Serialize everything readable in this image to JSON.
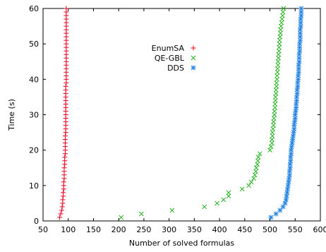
{
  "chart_data": {
    "type": "scatter",
    "xlabel": "Number of solved formulas",
    "ylabel": "Time (s)",
    "xlim": [
      50,
      600
    ],
    "ylim": [
      0,
      60
    ],
    "xticks": [
      "50",
      "100",
      "150",
      "200",
      "250",
      "300",
      "350",
      "400",
      "450",
      "500",
      "550",
      "600"
    ],
    "yticks": [
      "0",
      "10",
      "20",
      "30",
      "40",
      "50",
      "60"
    ],
    "legend_position": "top-center",
    "grid": false,
    "series": [
      {
        "name": "EnumSA",
        "marker": "plus",
        "color": "#e8001c",
        "points": [
          [
            83,
            1
          ],
          [
            85,
            2
          ],
          [
            87,
            3
          ],
          [
            88,
            4
          ],
          [
            89,
            5
          ],
          [
            89,
            6
          ],
          [
            90,
            7
          ],
          [
            90,
            8
          ],
          [
            91,
            9
          ],
          [
            91,
            10
          ],
          [
            91,
            11
          ],
          [
            92,
            12
          ],
          [
            92,
            13
          ],
          [
            92,
            14
          ],
          [
            92,
            15
          ],
          [
            93,
            16
          ],
          [
            93,
            17
          ],
          [
            93,
            18
          ],
          [
            94,
            19
          ],
          [
            94,
            20
          ],
          [
            94,
            21
          ],
          [
            94,
            22
          ],
          [
            94,
            23
          ],
          [
            94,
            24
          ],
          [
            95,
            25
          ],
          [
            95,
            26
          ],
          [
            95,
            27
          ],
          [
            95,
            28
          ],
          [
            95,
            29
          ],
          [
            95,
            30
          ],
          [
            95,
            31
          ],
          [
            95,
            32
          ],
          [
            95,
            33
          ],
          [
            95,
            34
          ],
          [
            95,
            35
          ],
          [
            95,
            36
          ],
          [
            95,
            37
          ],
          [
            95,
            38
          ],
          [
            96,
            39
          ],
          [
            96,
            40
          ],
          [
            96,
            41
          ],
          [
            96,
            42
          ],
          [
            96,
            43
          ],
          [
            96,
            44
          ],
          [
            96,
            45
          ],
          [
            96,
            46
          ],
          [
            96,
            47
          ],
          [
            96,
            48
          ],
          [
            96,
            49
          ],
          [
            96,
            50
          ],
          [
            96,
            51
          ],
          [
            96,
            52
          ],
          [
            96,
            53
          ],
          [
            96,
            54
          ],
          [
            96,
            55
          ],
          [
            96,
            56
          ],
          [
            96,
            57
          ],
          [
            96,
            58
          ],
          [
            96,
            59
          ],
          [
            96,
            60
          ]
        ]
      },
      {
        "name": "QE-GBL",
        "marker": "cross",
        "color": "#22b21d",
        "points": [
          [
            205,
            1
          ],
          [
            245,
            2
          ],
          [
            306,
            3
          ],
          [
            370,
            4
          ],
          [
            395,
            5
          ],
          [
            408,
            6
          ],
          [
            418,
            7
          ],
          [
            418,
            8
          ],
          [
            445,
            9
          ],
          [
            458,
            10
          ],
          [
            463,
            11
          ],
          [
            468,
            12
          ],
          [
            470,
            13
          ],
          [
            472,
            14
          ],
          [
            473,
            15
          ],
          [
            475,
            16
          ],
          [
            476,
            17
          ],
          [
            477,
            18
          ],
          [
            480,
            19
          ],
          [
            500,
            20
          ],
          [
            502,
            21
          ],
          [
            504,
            22
          ],
          [
            504,
            23
          ],
          [
            505,
            24
          ],
          [
            505,
            25
          ],
          [
            506,
            26
          ],
          [
            507,
            27
          ],
          [
            507,
            28
          ],
          [
            508,
            29
          ],
          [
            509,
            30
          ],
          [
            509,
            31
          ],
          [
            510,
            32
          ],
          [
            510,
            33
          ],
          [
            511,
            34
          ],
          [
            511,
            35
          ],
          [
            512,
            36
          ],
          [
            512,
            37
          ],
          [
            513,
            38
          ],
          [
            513,
            39
          ],
          [
            514,
            40
          ],
          [
            514,
            41
          ],
          [
            515,
            42
          ],
          [
            515,
            43
          ],
          [
            516,
            44
          ],
          [
            516,
            45
          ],
          [
            517,
            46
          ],
          [
            517,
            47
          ],
          [
            518,
            48
          ],
          [
            518,
            49
          ],
          [
            519,
            50
          ],
          [
            519,
            51
          ],
          [
            520,
            52
          ],
          [
            521,
            53
          ],
          [
            521,
            54
          ],
          [
            522,
            55
          ],
          [
            523,
            56
          ],
          [
            524,
            57
          ],
          [
            525,
            58
          ],
          [
            526,
            59
          ],
          [
            527,
            60
          ]
        ]
      },
      {
        "name": "DDS",
        "marker": "star",
        "color": "#1c7fe3",
        "points": [
          [
            502,
            1
          ],
          [
            512,
            2
          ],
          [
            520,
            3
          ],
          [
            526,
            4
          ],
          [
            530,
            5
          ],
          [
            532,
            6
          ],
          [
            533,
            7
          ],
          [
            534,
            8
          ],
          [
            535,
            9
          ],
          [
            536,
            10
          ],
          [
            537,
            11
          ],
          [
            538,
            12
          ],
          [
            539,
            13
          ],
          [
            539,
            14
          ],
          [
            540,
            15
          ],
          [
            540,
            16
          ],
          [
            541,
            17
          ],
          [
            541,
            18
          ],
          [
            542,
            19
          ],
          [
            542,
            20
          ],
          [
            543,
            21
          ],
          [
            544,
            22
          ],
          [
            545,
            23
          ],
          [
            546,
            24
          ],
          [
            547,
            25
          ],
          [
            548,
            26
          ],
          [
            548,
            27
          ],
          [
            549,
            28
          ],
          [
            550,
            29
          ],
          [
            550,
            30
          ],
          [
            551,
            31
          ],
          [
            552,
            32
          ],
          [
            552,
            33
          ],
          [
            553,
            34
          ],
          [
            553,
            35
          ],
          [
            554,
            36
          ],
          [
            554,
            37
          ],
          [
            555,
            38
          ],
          [
            555,
            39
          ],
          [
            556,
            40
          ],
          [
            556,
            41
          ],
          [
            557,
            42
          ],
          [
            557,
            43
          ],
          [
            557,
            44
          ],
          [
            558,
            45
          ],
          [
            558,
            46
          ],
          [
            558,
            47
          ],
          [
            559,
            48
          ],
          [
            559,
            49
          ],
          [
            559,
            50
          ],
          [
            560,
            51
          ],
          [
            560,
            52
          ],
          [
            560,
            53
          ],
          [
            560,
            54
          ],
          [
            561,
            55
          ],
          [
            561,
            56
          ],
          [
            561,
            57
          ],
          [
            562,
            58
          ],
          [
            562,
            59
          ],
          [
            562,
            60
          ]
        ]
      }
    ]
  }
}
